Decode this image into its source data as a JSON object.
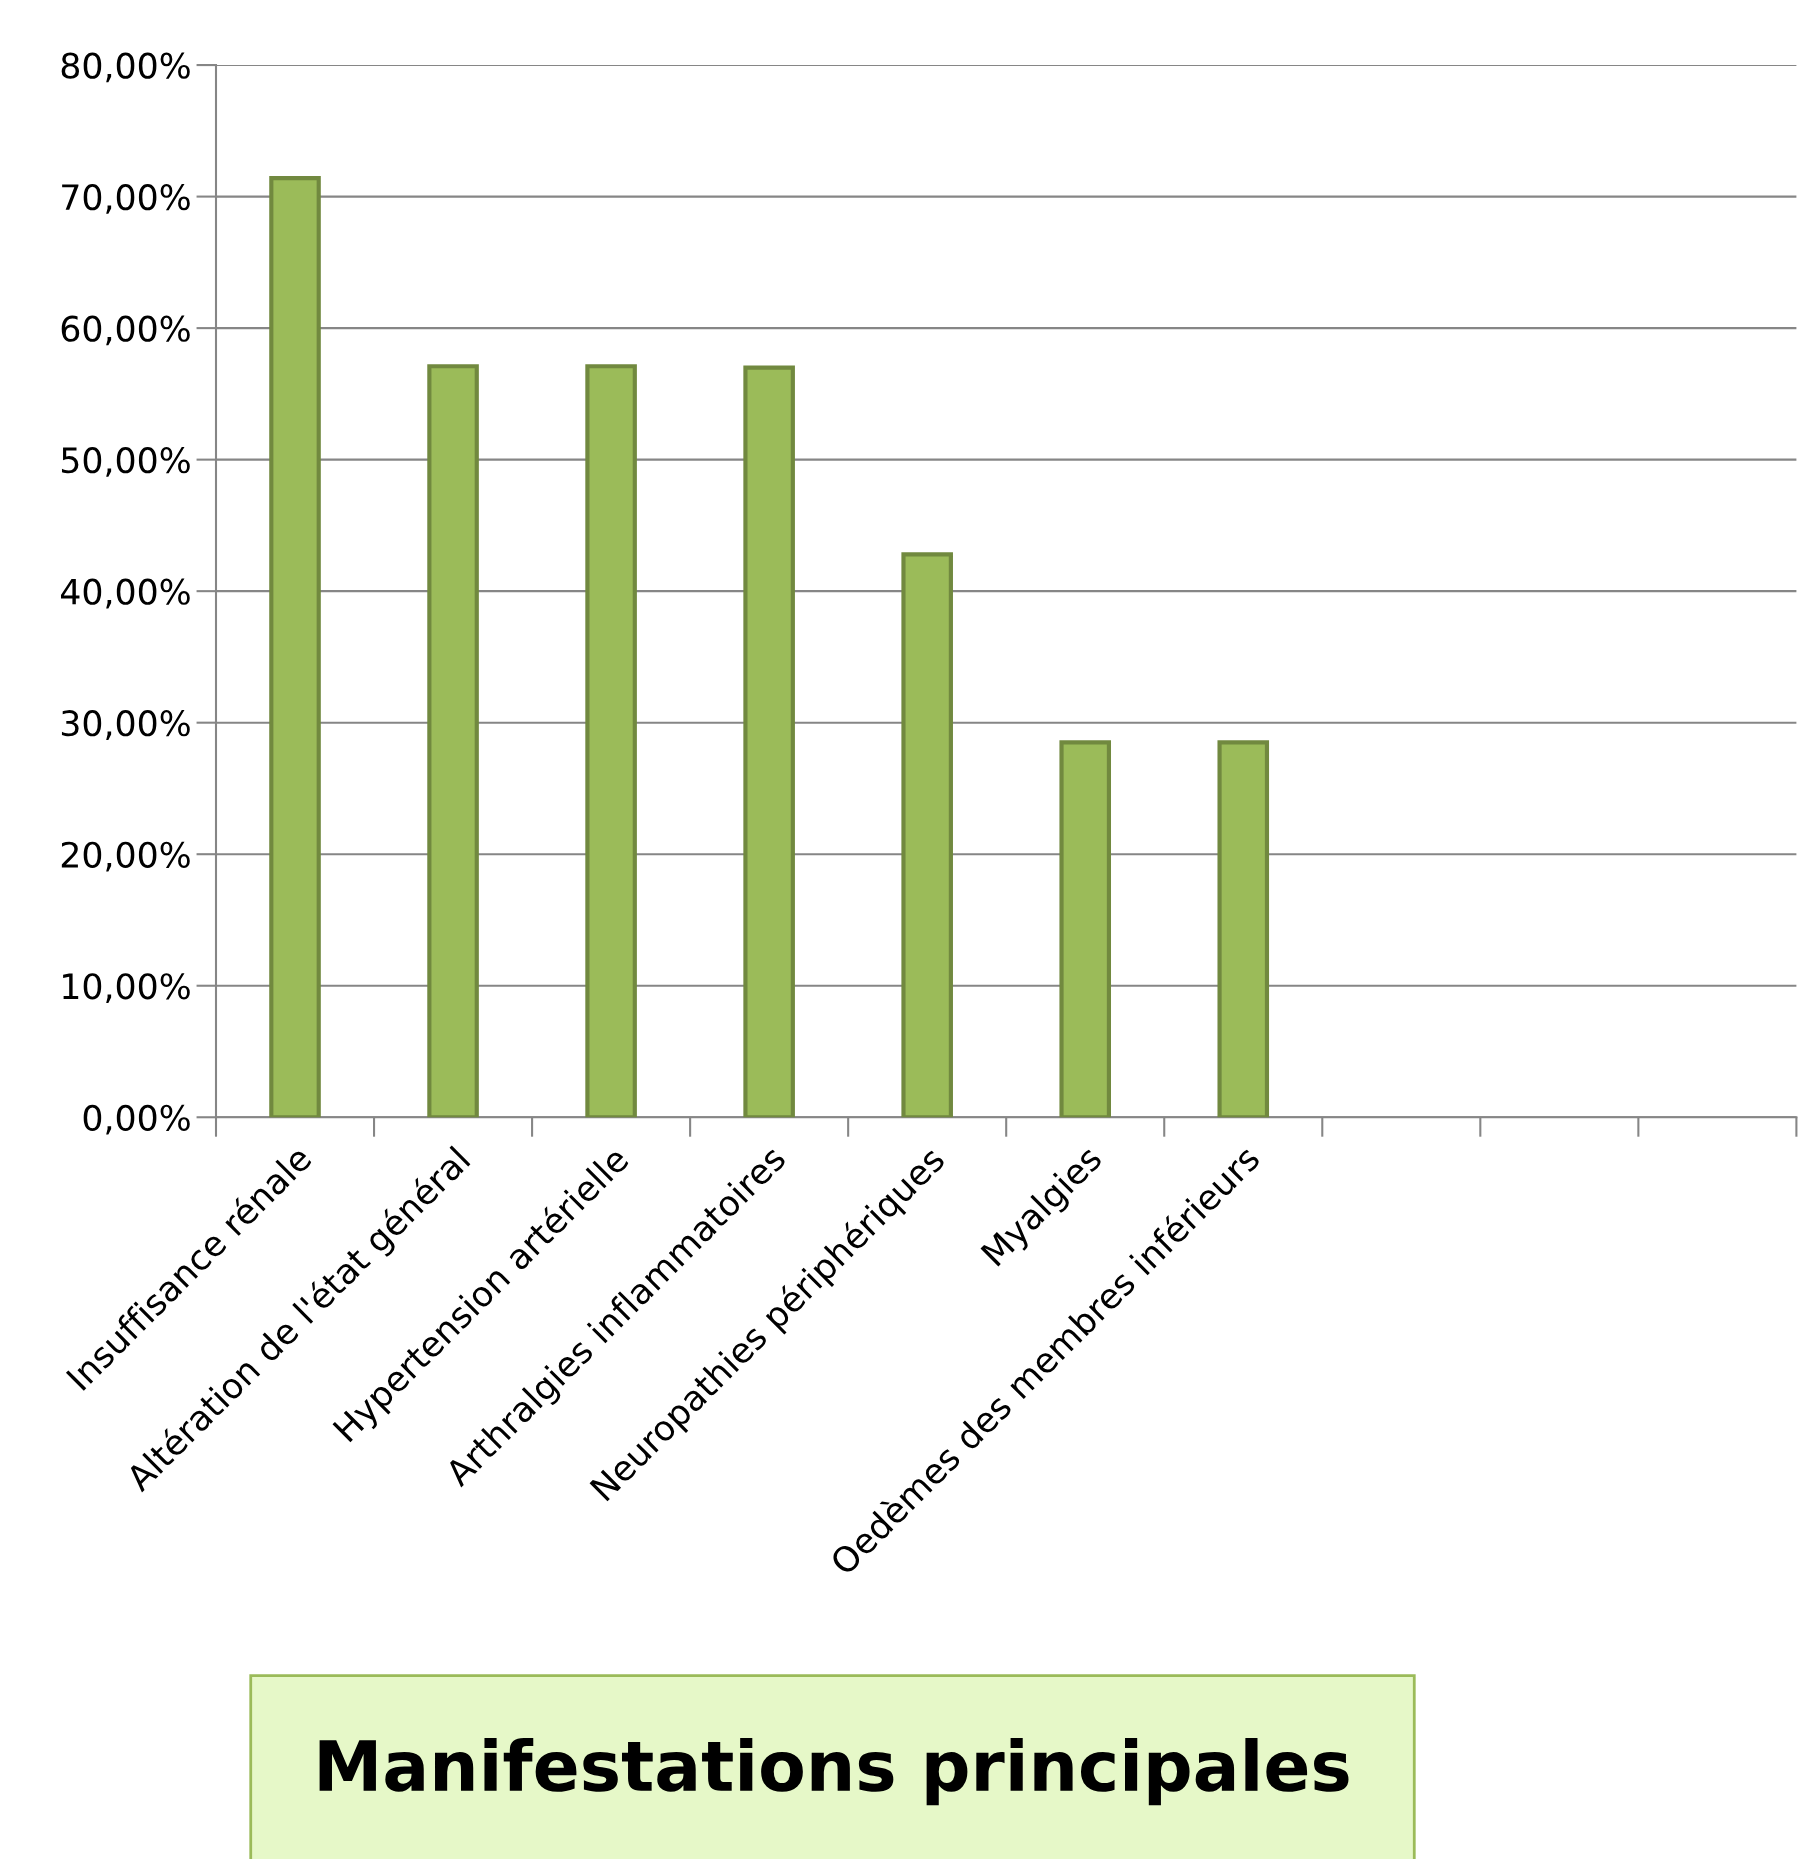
{
  "chart_data": {
    "type": "bar",
    "title": "Manifestations principales",
    "categories": [
      "Insuffisance rénale",
      "Altération de l'état général",
      "Hypertension artérielle",
      "Arthralgies inflammatoires",
      "Neuropathies périphériques",
      "Myalgies",
      "Oedèmes des membres inférieurs",
      null,
      null,
      null
    ],
    "values": [
      71.4,
      57.1,
      57.1,
      57.0,
      42.8,
      28.5,
      28.5,
      null,
      null,
      null
    ],
    "color": "#9bbb59",
    "ylim": [
      0,
      80
    ],
    "yticks": [
      {
        "value": 0,
        "label": "0,00%"
      },
      {
        "value": 10,
        "label": "10,00%"
      },
      {
        "value": 20,
        "label": "20,00%"
      },
      {
        "value": 30,
        "label": "30,00%"
      },
      {
        "value": 40,
        "label": "40,00%"
      },
      {
        "value": 50,
        "label": "50,00%"
      },
      {
        "value": 60,
        "label": "60,00%"
      },
      {
        "value": 70,
        "label": "70,00%"
      },
      {
        "value": 80,
        "label": "80,00%"
      }
    ],
    "grid": "y",
    "legend": false
  }
}
